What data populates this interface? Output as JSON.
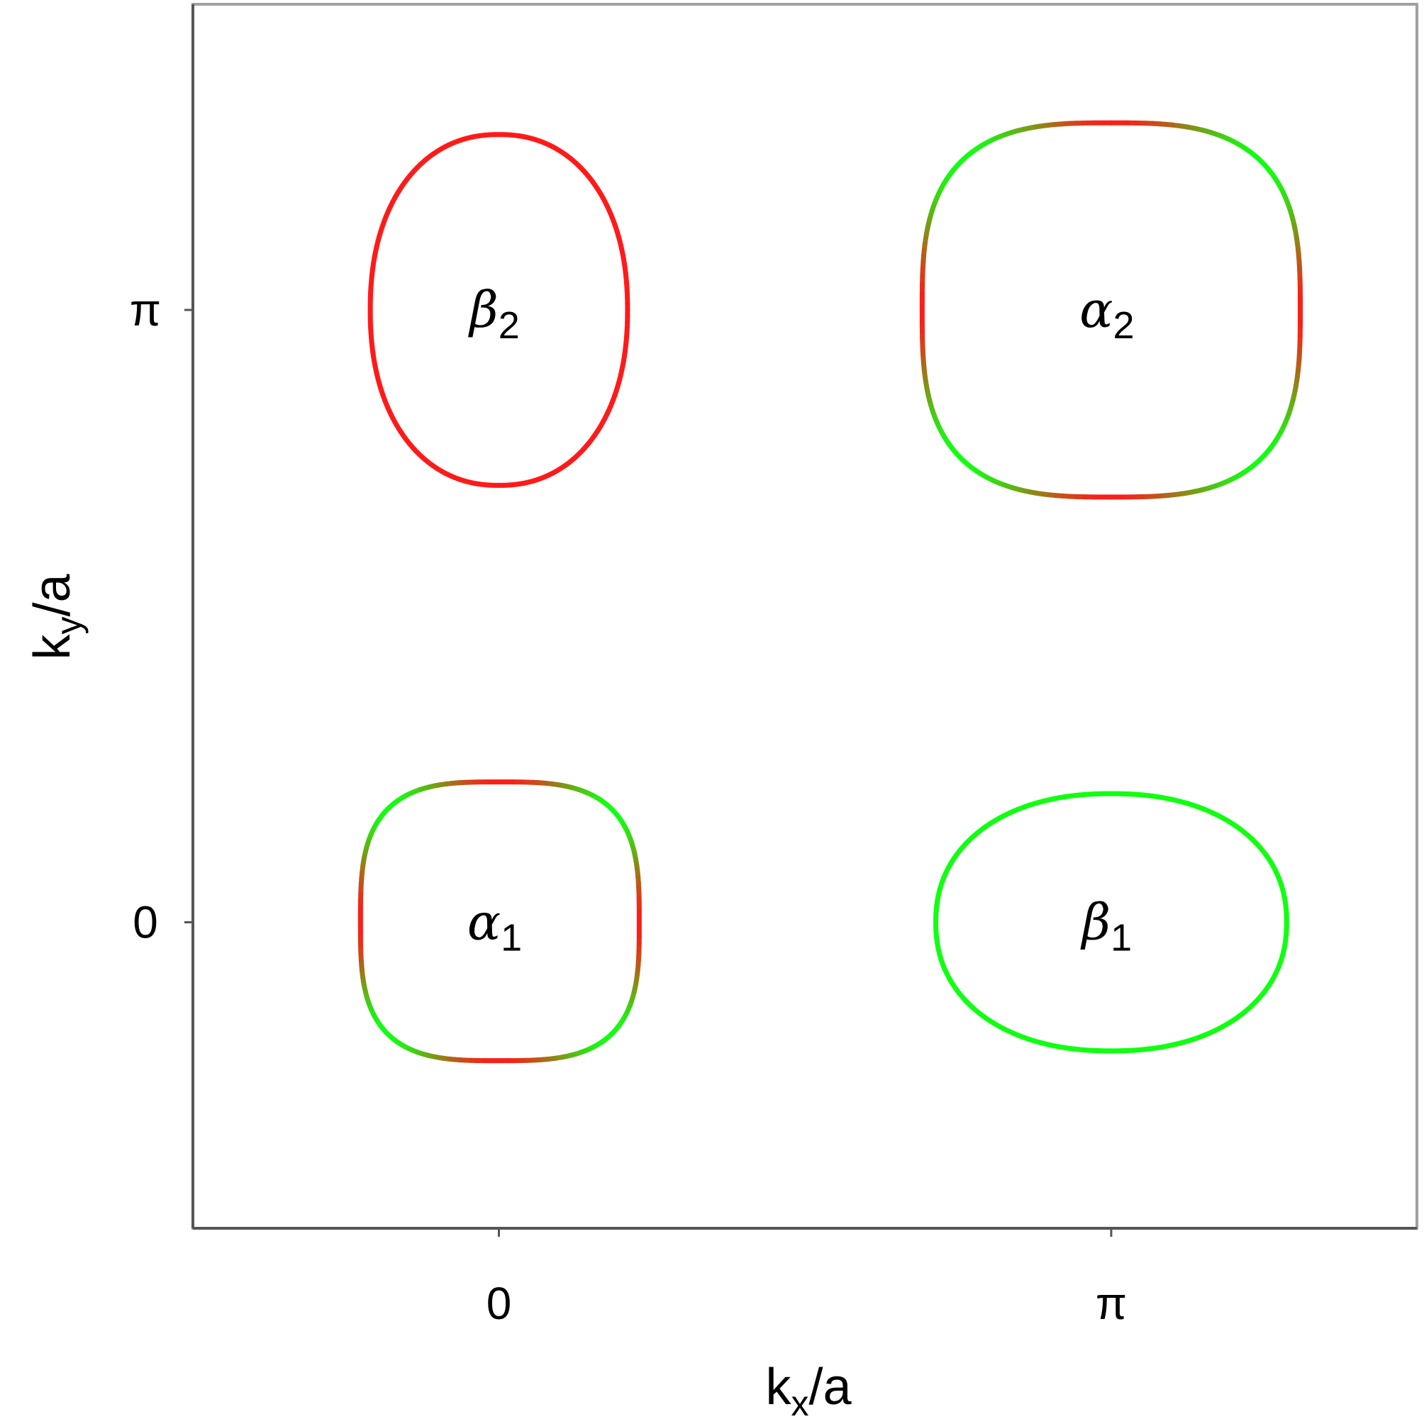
{
  "chart_data": {
    "type": "line",
    "title": "",
    "xlabel": {
      "base": "k",
      "sub": "x",
      "suffix": "/a"
    },
    "ylabel": {
      "base": "k",
      "sub": "y",
      "suffix": "/a"
    },
    "x_ticks": [
      {
        "value": 0,
        "label": "0"
      },
      {
        "value": 3.1416,
        "label": "π"
      }
    ],
    "y_ticks": [
      {
        "value": 0,
        "label": "0"
      },
      {
        "value": 3.1416,
        "label": "π"
      }
    ],
    "xlim": [
      -1.57,
      4.71
    ],
    "ylim": [
      -1.57,
      4.71
    ],
    "grid": false,
    "legend": "none",
    "series": [
      {
        "label": {
          "symbol": "α",
          "sub": "1"
        },
        "center": [
          0,
          0
        ],
        "rx_left": 0.71,
        "rx_right": 0.72,
        "ry_top": 0.72,
        "ry_bottom": 0.71,
        "shape_power": 3.2,
        "color_axis": "#ff1a1a",
        "color_diagonal": "#11ff11"
      },
      {
        "label": {
          "symbol": "β",
          "sub": "1"
        },
        "center": [
          3.1416,
          0
        ],
        "rx_left": 0.9,
        "rx_right": 0.9,
        "ry_top": 0.66,
        "ry_bottom": 0.66,
        "shape_power": 2.2,
        "color_axis": "#11ff11",
        "color_diagonal": "#11ff11"
      },
      {
        "label": {
          "symbol": "β",
          "sub": "2"
        },
        "center": [
          0,
          3.1416
        ],
        "rx_left": 0.66,
        "rx_right": 0.66,
        "ry_top": 0.9,
        "ry_bottom": 0.9,
        "shape_power": 2.2,
        "color_axis": "#ff1a1a",
        "color_diagonal": "#ff1a1a"
      },
      {
        "label": {
          "symbol": "α",
          "sub": "2"
        },
        "center": [
          3.1416,
          3.1416
        ],
        "rx_left": 0.97,
        "rx_right": 0.97,
        "ry_top": 0.96,
        "ry_bottom": 0.96,
        "shape_power": 3.0,
        "color_axis": "#ff1a1a",
        "color_diagonal": "#11ff11"
      }
    ]
  }
}
